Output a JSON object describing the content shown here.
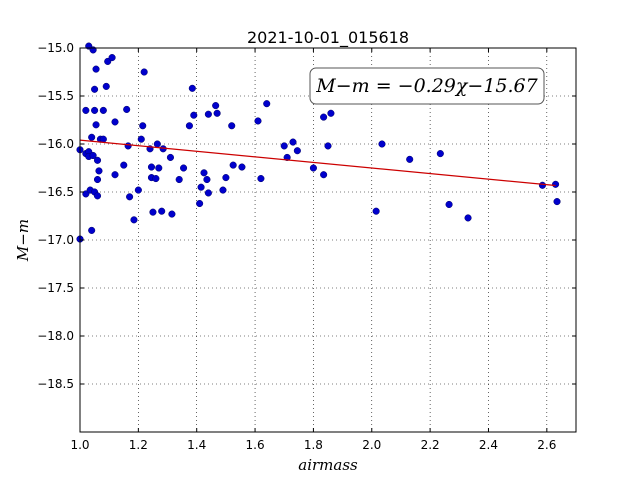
{
  "chart_data": {
    "type": "scatter",
    "title": "2021-10-01_015618",
    "xlabel": "airmass",
    "ylabel": "M−m",
    "xlim": [
      1.0,
      2.7
    ],
    "ylim": [
      -19.0,
      -15.0
    ],
    "y_inverted": true,
    "xticks": [
      "1.0",
      "1.2",
      "1.4",
      "1.6",
      "1.8",
      "2.0",
      "2.2",
      "2.4",
      "2.6"
    ],
    "yticks": [
      "−15.0",
      "−15.5",
      "−16.0",
      "−16.5",
      "−17.0",
      "−17.5",
      "−18.0",
      "−18.5"
    ],
    "grid": true,
    "point_color": "#0000cc",
    "fit_color": "#cc0000",
    "annotation": "M−m = −0.29χ−15.67",
    "fit": {
      "slope": -0.29,
      "intercept": -15.67,
      "x_range": [
        1.0,
        2.63
      ]
    },
    "points": [
      [
        1.0,
        -16.06
      ],
      [
        1.0,
        -16.99
      ],
      [
        1.02,
        -15.65
      ],
      [
        1.02,
        -16.1
      ],
      [
        1.02,
        -16.52
      ],
      [
        1.03,
        -14.98
      ],
      [
        1.03,
        -16.08
      ],
      [
        1.03,
        -16.13
      ],
      [
        1.035,
        -16.48
      ],
      [
        1.04,
        -15.93
      ],
      [
        1.04,
        -16.9
      ],
      [
        1.045,
        -15.02
      ],
      [
        1.045,
        -16.12
      ],
      [
        1.05,
        -16.5
      ],
      [
        1.05,
        -15.43
      ],
      [
        1.05,
        -15.65
      ],
      [
        1.055,
        -15.8
      ],
      [
        1.055,
        -15.22
      ],
      [
        1.06,
        -16.17
      ],
      [
        1.06,
        -16.37
      ],
      [
        1.06,
        -16.54
      ],
      [
        1.065,
        -16.28
      ],
      [
        1.07,
        -15.95
      ],
      [
        1.08,
        -15.65
      ],
      [
        1.08,
        -15.95
      ],
      [
        1.09,
        -15.4
      ],
      [
        1.095,
        -15.14
      ],
      [
        1.11,
        -15.1
      ],
      [
        1.12,
        -15.77
      ],
      [
        1.12,
        -16.32
      ],
      [
        1.15,
        -16.22
      ],
      [
        1.16,
        -15.64
      ],
      [
        1.165,
        -16.02
      ],
      [
        1.17,
        -16.55
      ],
      [
        1.185,
        -16.79
      ],
      [
        1.2,
        -16.48
      ],
      [
        1.21,
        -15.95
      ],
      [
        1.215,
        -15.81
      ],
      [
        1.22,
        -15.25
      ],
      [
        1.24,
        -16.05
      ],
      [
        1.245,
        -16.24
      ],
      [
        1.245,
        -16.35
      ],
      [
        1.25,
        -16.71
      ],
      [
        1.26,
        -16.36
      ],
      [
        1.265,
        -16.0
      ],
      [
        1.27,
        -16.25
      ],
      [
        1.28,
        -16.7
      ],
      [
        1.285,
        -16.05
      ],
      [
        1.31,
        -16.14
      ],
      [
        1.315,
        -16.73
      ],
      [
        1.34,
        -16.37
      ],
      [
        1.355,
        -16.25
      ],
      [
        1.375,
        -15.81
      ],
      [
        1.385,
        -15.42
      ],
      [
        1.39,
        -15.7
      ],
      [
        1.41,
        -16.62
      ],
      [
        1.415,
        -16.45
      ],
      [
        1.425,
        -16.3
      ],
      [
        1.435,
        -16.37
      ],
      [
        1.44,
        -16.51
      ],
      [
        1.44,
        -15.69
      ],
      [
        1.465,
        -15.6
      ],
      [
        1.47,
        -15.68
      ],
      [
        1.49,
        -16.48
      ],
      [
        1.5,
        -16.35
      ],
      [
        1.52,
        -15.81
      ],
      [
        1.525,
        -16.22
      ],
      [
        1.555,
        -16.24
      ],
      [
        1.61,
        -15.76
      ],
      [
        1.62,
        -16.36
      ],
      [
        1.64,
        -15.58
      ],
      [
        1.7,
        -16.02
      ],
      [
        1.71,
        -16.14
      ],
      [
        1.73,
        -15.98
      ],
      [
        1.745,
        -16.07
      ],
      [
        1.8,
        -16.25
      ],
      [
        1.835,
        -16.32
      ],
      [
        1.835,
        -15.72
      ],
      [
        1.85,
        -16.02
      ],
      [
        1.86,
        -15.68
      ],
      [
        2.015,
        -16.7
      ],
      [
        2.035,
        -16.0
      ],
      [
        2.13,
        -16.16
      ],
      [
        2.235,
        -16.1
      ],
      [
        2.265,
        -16.63
      ],
      [
        2.33,
        -16.77
      ],
      [
        2.585,
        -16.43
      ],
      [
        2.63,
        -16.42
      ],
      [
        2.635,
        -16.6
      ]
    ]
  }
}
